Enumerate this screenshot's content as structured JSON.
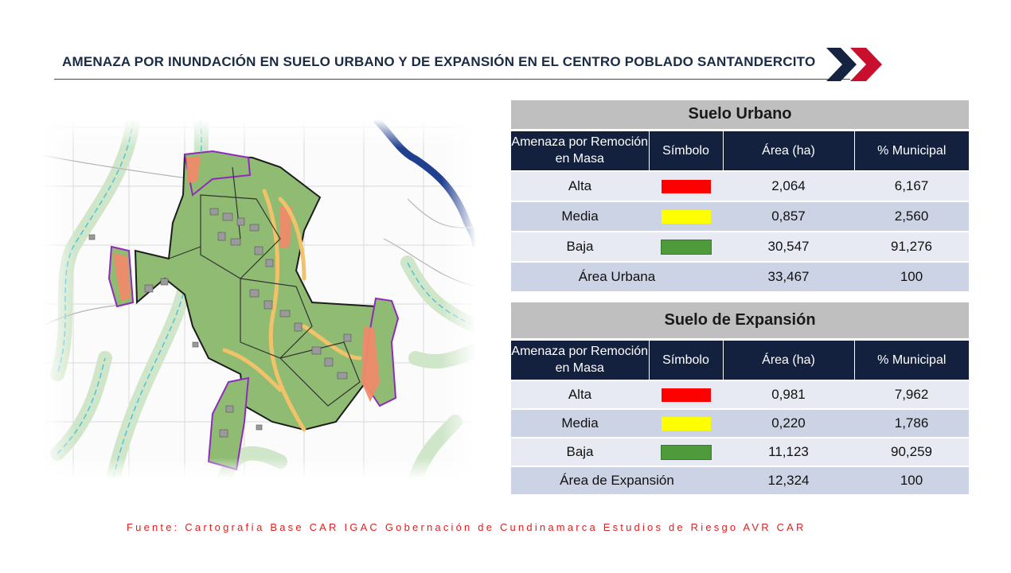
{
  "title": "AMENAZA POR INUNDACIÓN  EN SUELO URBANO  Y DE EXPANSIÓN  EN EL CENTRO POBLADO  SANTANDERCITO",
  "colors": {
    "alta": "#ff0000",
    "media": "#ffff00",
    "baja": "#4f9a3a",
    "header": "#13213f",
    "accent_red": "#c8102e"
  },
  "urbano": {
    "caption": "Suelo Urbano",
    "headers": [
      "Amenaza por Remoción en Masa",
      "Símbolo",
      "Área (ha)",
      "% Municipal"
    ],
    "rows": [
      {
        "label": "Alta",
        "area": "2,064",
        "pct": "6,167"
      },
      {
        "label": "Media",
        "area": "0,857",
        "pct": "2,560"
      },
      {
        "label": "Baja",
        "area": "30,547",
        "pct": "91,276"
      }
    ],
    "total": {
      "label": "Área Urbana",
      "area": "33,467",
      "pct": "100"
    }
  },
  "expansion": {
    "caption": "Suelo de Expansión",
    "headers": [
      "Amenaza por Remoción en Masa",
      "Símbolo",
      "Área (ha)",
      "% Municipal"
    ],
    "rows": [
      {
        "label": "Alta",
        "area": "0,981",
        "pct": "7,962"
      },
      {
        "label": "Media",
        "area": "0,220",
        "pct": "1,786"
      },
      {
        "label": "Baja",
        "area": "11,123",
        "pct": "90,259"
      }
    ],
    "total": {
      "label": "Área de Expansión",
      "area": "12,324",
      "pct": "100"
    }
  },
  "source": "Fuente: Cartografía Base CAR IGAC Gobernación de Cundinamarca Estudios de Riesgo AVR CAR"
}
